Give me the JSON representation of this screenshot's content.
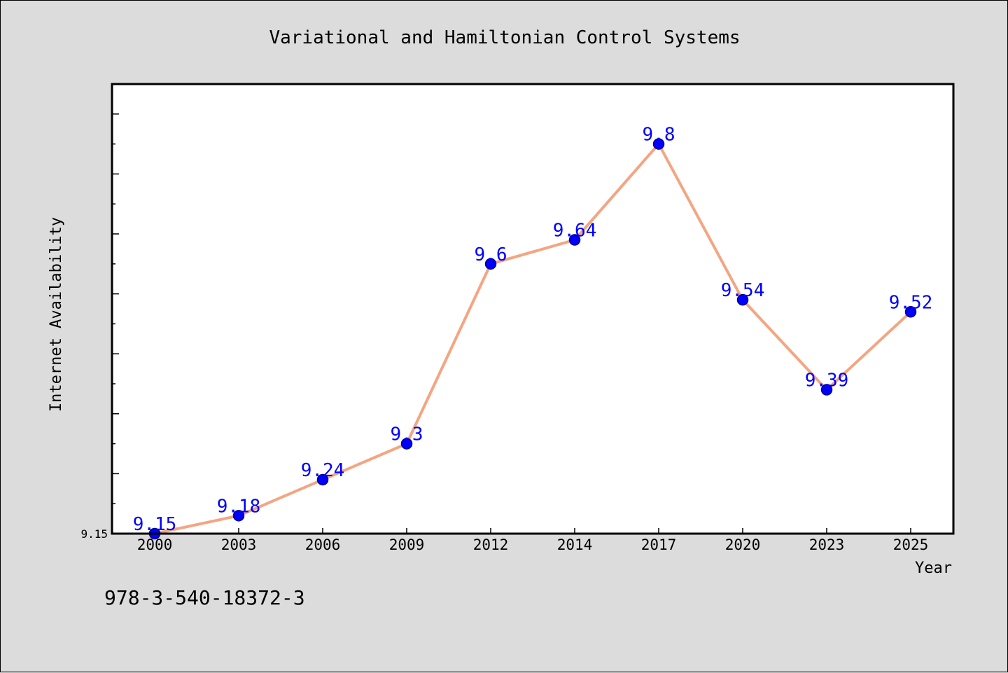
{
  "colors": {
    "background": "#dcdcdc",
    "plot_background": "#ffffff",
    "line": "#f4a582",
    "marker_fill": "#0000ff",
    "marker_edge": "#00008b",
    "data_label": "#0000ff"
  },
  "footer_text": "978-3-540-18372-3",
  "chart_data": {
    "type": "line",
    "title": "Variational and Hamiltonian Control Systems",
    "xlabel": "Year",
    "ylabel": "Internet Availability",
    "categories": [
      "2000",
      "2003",
      "2006",
      "2009",
      "2012",
      "2014",
      "2017",
      "2020",
      "2023",
      "2025"
    ],
    "series": [
      {
        "values": [
          9.15,
          9.18,
          9.24,
          9.3,
          9.6,
          9.64,
          9.8,
          9.54,
          9.39,
          9.52
        ],
        "labels": [
          "9.15",
          "9.18",
          "9.24",
          "9.3",
          "9.6",
          "9.64",
          "9.8",
          "9.54",
          "9.39",
          "9.52"
        ]
      }
    ],
    "ylim": [
      9.15,
      9.9
    ],
    "yticks": [
      {
        "value": 9.15,
        "label": "9.15"
      }
    ],
    "yminor_step": 0.05,
    "grid": false,
    "legend": "none"
  }
}
